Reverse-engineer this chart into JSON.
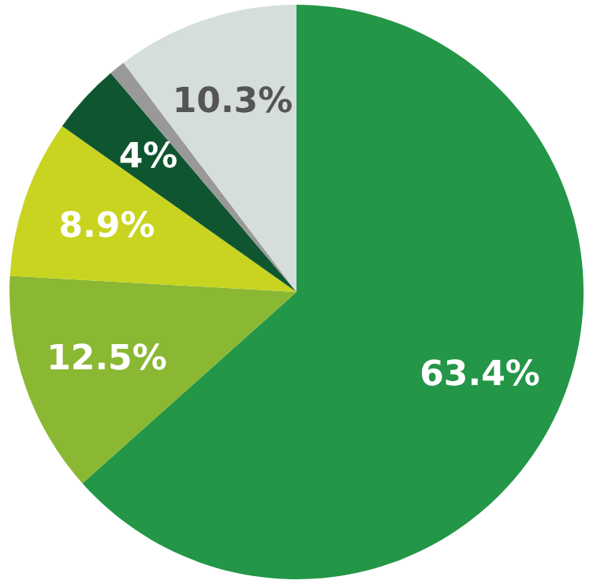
{
  "chart_data": {
    "type": "pie",
    "categories": [
      null,
      null,
      null,
      null,
      null,
      null
    ],
    "values": [
      63.4,
      12.5,
      8.9,
      4,
      0.9,
      10.3
    ],
    "colors": [
      "#239647",
      "#8ab832",
      "#c8d420",
      "#0f5530",
      "#999999",
      "#d5dedb"
    ],
    "value_labels": [
      "63.4%",
      "12.5%",
      "8.9%",
      "4%",
      null,
      "10.3%"
    ]
  }
}
